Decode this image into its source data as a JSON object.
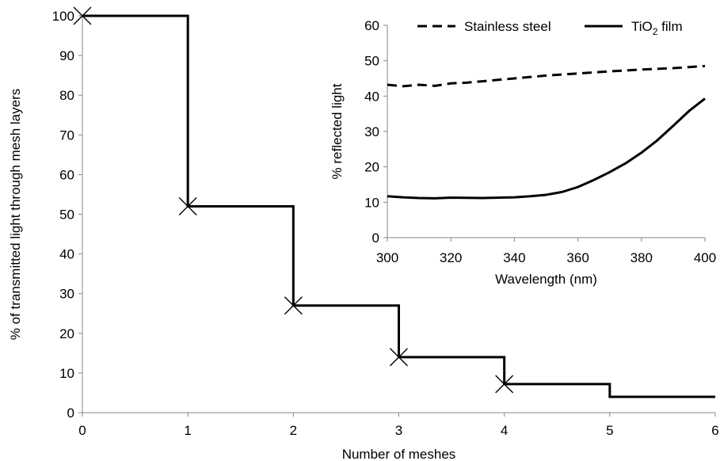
{
  "chart_data": [
    {
      "type": "line",
      "style": "step",
      "xlabel": "Number of meshes",
      "ylabel": "% of  transmitted light through mesh layers",
      "xlim": [
        0,
        6
      ],
      "ylim": [
        0,
        100
      ],
      "xticks": [
        0,
        1,
        2,
        3,
        4,
        5,
        6
      ],
      "yticks": [
        0,
        10,
        20,
        30,
        40,
        50,
        60,
        70,
        80,
        90,
        100
      ],
      "grid": false,
      "series": [
        {
          "x": [
            0,
            1,
            2,
            3,
            4,
            5,
            6
          ],
          "y": [
            100,
            52,
            27,
            14,
            7.2,
            4,
            4
          ],
          "color": "#000000"
        }
      ],
      "markers": [
        {
          "x": 0,
          "y": 100
        },
        {
          "x": 1,
          "y": 52
        },
        {
          "x": 2,
          "y": 27
        },
        {
          "x": 3,
          "y": 14
        },
        {
          "x": 4,
          "y": 7.2
        }
      ],
      "marker_symbol": "x"
    },
    {
      "type": "line",
      "xlabel": "Wavelength (nm)",
      "ylabel": "% reflected light",
      "xlim": [
        300,
        400
      ],
      "ylim": [
        0,
        60
      ],
      "xticks": [
        300,
        320,
        340,
        360,
        380,
        400
      ],
      "yticks": [
        0,
        10,
        20,
        30,
        40,
        50,
        60
      ],
      "grid": false,
      "legend_position": "top",
      "series": [
        {
          "name": "Stainless steel",
          "dash": "dashed",
          "color": "#000000",
          "x": [
            300,
            305,
            310,
            315,
            320,
            325,
            330,
            340,
            350,
            360,
            370,
            380,
            390,
            400
          ],
          "y": [
            43.2,
            42.8,
            43.2,
            42.9,
            43.6,
            43.8,
            44.2,
            45.0,
            45.8,
            46.4,
            47.0,
            47.5,
            47.9,
            48.5
          ]
        },
        {
          "name_main": "TiO",
          "name_sub": "2",
          "name_rest": " film",
          "dash": "solid",
          "color": "#000000",
          "x": [
            300,
            305,
            310,
            315,
            320,
            330,
            340,
            345,
            350,
            355,
            360,
            365,
            370,
            375,
            380,
            385,
            390,
            395,
            400
          ],
          "y": [
            11.7,
            11.4,
            11.2,
            11.1,
            11.3,
            11.2,
            11.4,
            11.7,
            12.1,
            12.9,
            14.3,
            16.3,
            18.5,
            21.0,
            24.0,
            27.5,
            31.6,
            35.8,
            39.3
          ]
        }
      ]
    }
  ]
}
